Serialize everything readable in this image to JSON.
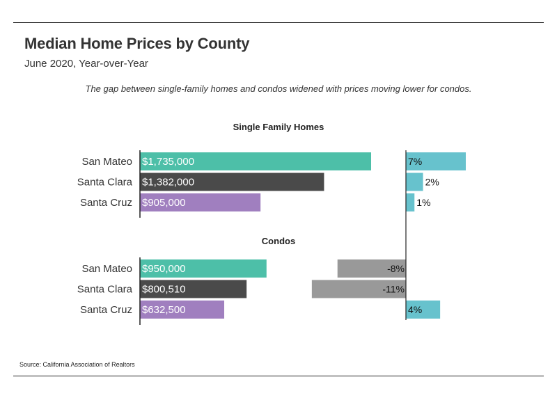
{
  "header": {
    "title": "Median Home Prices by County",
    "subtitle": "June 2020, Year-over-Year",
    "note": "The gap between single-family homes and condos widened with prices moving lower for condos."
  },
  "footer": {
    "source": "Source:  California Association of Realtors"
  },
  "colors": {
    "San Mateo": "#4dbfa8",
    "Santa Clara": "#4a4a4a",
    "Santa Cruz": "#a07fbf",
    "pct_positive": "#67c2cd",
    "pct_negative": "#999999"
  },
  "chart_data": [
    {
      "type": "bar",
      "title": "Single Family Homes",
      "categories": [
        "San Mateo",
        "Santa Clara",
        "Santa Cruz"
      ],
      "series": [
        {
          "values": [
            1735000,
            1382000,
            905000
          ],
          "labels": [
            "$1,735,000",
            "$1,382,000",
            "$905,000"
          ]
        },
        {
          "values": [
            7,
            2,
            1
          ],
          "labels": [
            "7%",
            "2%",
            "1%"
          ]
        }
      ]
    },
    {
      "type": "bar",
      "title": "Condos",
      "categories": [
        "San Mateo",
        "Santa Clara",
        "Santa Cruz"
      ],
      "series": [
        {
          "values": [
            950000,
            800510,
            632500
          ],
          "labels": [
            "$950,000",
            "$800,510",
            "$632,500"
          ]
        },
        {
          "values": [
            -8,
            -11,
            4
          ],
          "labels": [
            "-8%",
            "-11%",
            "4%"
          ]
        }
      ]
    }
  ]
}
